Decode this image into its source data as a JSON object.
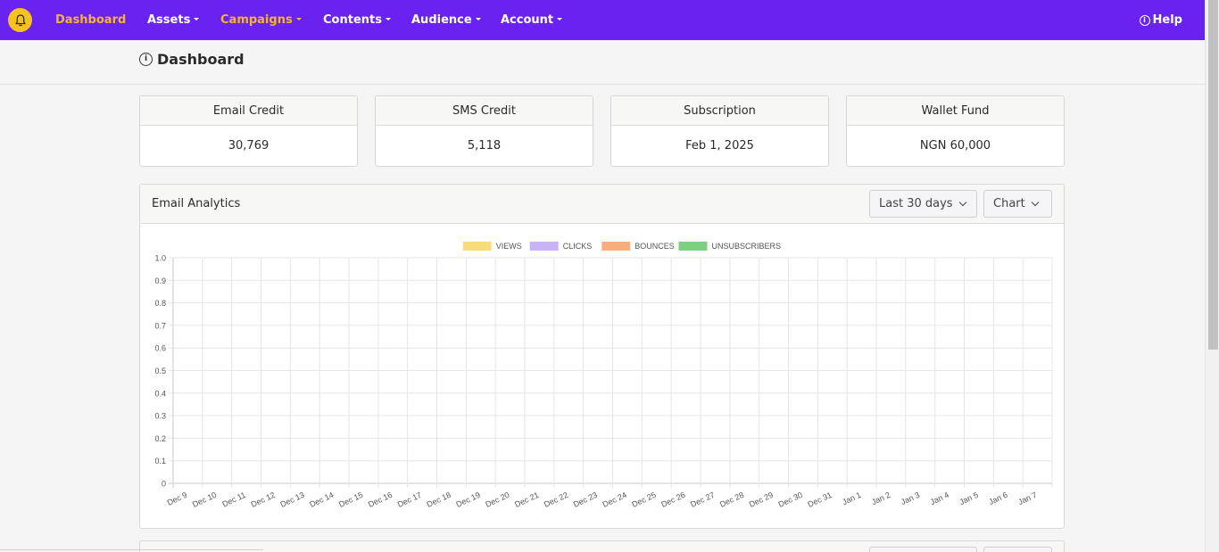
{
  "nav": {
    "items": [
      {
        "label": "Dashboard",
        "active": true,
        "dropdown": false
      },
      {
        "label": "Assets",
        "active": false,
        "dropdown": true
      },
      {
        "label": "Campaigns",
        "active": true,
        "dropdown": true
      },
      {
        "label": "Contents",
        "active": false,
        "dropdown": true
      },
      {
        "label": "Audience",
        "active": false,
        "dropdown": true
      },
      {
        "label": "Account",
        "active": false,
        "dropdown": true
      }
    ],
    "help_label": "Help",
    "colors": {
      "bar": "#6a22f0",
      "active": "#f5b52a",
      "logo": "#f6c21c"
    }
  },
  "page": {
    "title": "Dashboard"
  },
  "cards": [
    {
      "label": "Email Credit",
      "value": "30,769"
    },
    {
      "label": "SMS Credit",
      "value": "5,118"
    },
    {
      "label": "Subscription",
      "value": "Feb 1, 2025"
    },
    {
      "label": "Wallet Fund",
      "value": "NGN 60,000"
    }
  ],
  "analytics": {
    "title": "Email Analytics",
    "range_select": "Last 30 days",
    "view_select": "Chart"
  },
  "chart_data": {
    "type": "bar",
    "title": "",
    "xlabel": "",
    "ylabel": "",
    "ylim": [
      0,
      1.0
    ],
    "yticks": [
      "0",
      "0.1",
      "0.2",
      "0.3",
      "0.4",
      "0.5",
      "0.6",
      "0.7",
      "0.8",
      "0.9",
      "1.0"
    ],
    "grid": true,
    "legend": "top-center",
    "categories": [
      "Dec 9",
      "Dec 10",
      "Dec 11",
      "Dec 12",
      "Dec 13",
      "Dec 14",
      "Dec 15",
      "Dec 16",
      "Dec 17",
      "Dec 18",
      "Dec 19",
      "Dec 20",
      "Dec 21",
      "Dec 22",
      "Dec 23",
      "Dec 24",
      "Dec 25",
      "Dec 26",
      "Dec 27",
      "Dec 28",
      "Dec 29",
      "Dec 30",
      "Dec 31",
      "Jan 1",
      "Jan 2",
      "Jan 3",
      "Jan 4",
      "Jan 5",
      "Jan 6",
      "Jan 7"
    ],
    "series": [
      {
        "name": "VIEWS",
        "color": "#f8dc7c",
        "values": [
          0,
          0,
          0,
          0,
          0,
          0,
          0,
          0,
          0,
          0,
          0,
          0,
          0,
          0,
          0,
          0,
          0,
          0,
          0,
          0,
          0,
          0,
          0,
          0,
          0,
          0,
          0,
          0,
          0,
          0
        ]
      },
      {
        "name": "CLICKS",
        "color": "#c9b3f7",
        "values": [
          0,
          0,
          0,
          0,
          0,
          0,
          0,
          0,
          0,
          0,
          0,
          0,
          0,
          0,
          0,
          0,
          0,
          0,
          0,
          0,
          0,
          0,
          0,
          0,
          0,
          0,
          0,
          0,
          0,
          0
        ]
      },
      {
        "name": "BOUNCES",
        "color": "#f7ad7e",
        "values": [
          0,
          0,
          0,
          0,
          0,
          0,
          0,
          0,
          0,
          0,
          0,
          0,
          0,
          0,
          0,
          0,
          0,
          0,
          0,
          0,
          0,
          0,
          0,
          0,
          0,
          0,
          0,
          0,
          0,
          0
        ]
      },
      {
        "name": "UNSUBSCRIBERS",
        "color": "#7ed07e",
        "values": [
          0,
          0,
          0,
          0,
          0,
          0,
          0,
          0,
          0,
          0,
          0,
          0,
          0,
          0,
          0,
          0,
          0,
          0,
          0,
          0,
          0,
          0,
          0,
          0,
          0,
          0,
          0,
          0,
          0,
          0
        ]
      }
    ]
  }
}
